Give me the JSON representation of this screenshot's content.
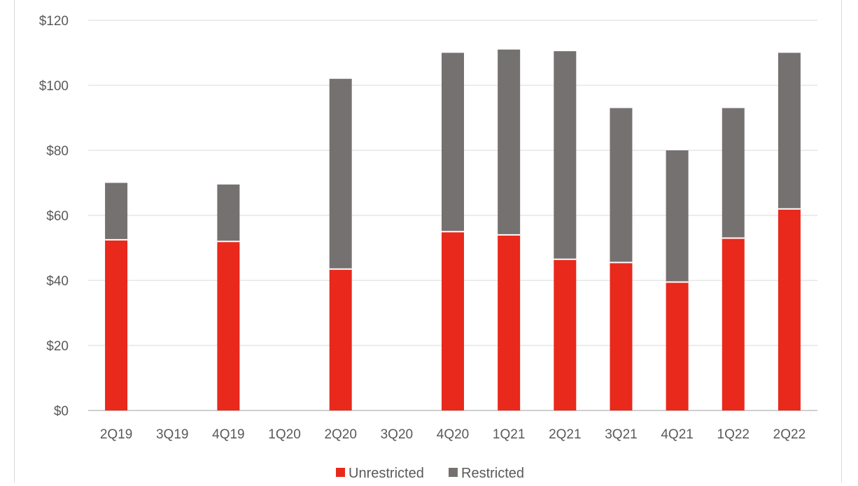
{
  "chart_data": {
    "type": "bar",
    "stacked": true,
    "categories": [
      "2Q19",
      "3Q19",
      "4Q19",
      "1Q20",
      "2Q20",
      "3Q20",
      "4Q20",
      "1Q21",
      "2Q21",
      "3Q21",
      "4Q21",
      "1Q22",
      "2Q22"
    ],
    "series": [
      {
        "name": "Unrestricted",
        "color": "#e8291c",
        "values": [
          52.5,
          null,
          52,
          null,
          43.5,
          null,
          55,
          54,
          46.5,
          45.5,
          39.5,
          53,
          62
        ]
      },
      {
        "name": "Restricted",
        "color": "#767171",
        "values": [
          17.5,
          null,
          17.5,
          null,
          58.5,
          null,
          55,
          57,
          64,
          47.5,
          40.5,
          40,
          48
        ]
      }
    ],
    "yticks": [
      "$0",
      "$20",
      "$40",
      "$60",
      "$80",
      "$100",
      "$120"
    ],
    "ylim": [
      0,
      120
    ],
    "ytick_step": 20,
    "grid": true,
    "legend": "bottom"
  }
}
